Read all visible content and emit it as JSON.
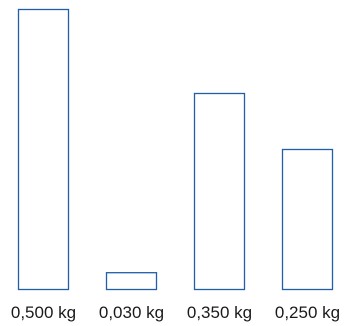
{
  "chart_data": {
    "type": "bar",
    "categories": [
      "0,500 kg",
      "0,030 kg",
      "0,350 kg",
      "0,250 kg"
    ],
    "values": [
      0.5,
      0.03,
      0.35,
      0.25
    ],
    "ylim": [
      0,
      0.5
    ],
    "grid": false,
    "colors": {
      "bar_stroke": "#1f5fa8",
      "bar_fill": "#ffffff"
    }
  }
}
